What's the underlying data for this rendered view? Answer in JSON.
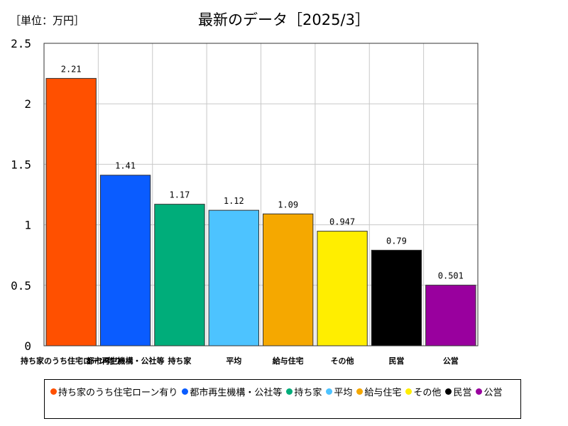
{
  "header": {
    "unit_label": "［単位：万円］",
    "title": "最新のデータ［2025/3］"
  },
  "chart_data": {
    "type": "bar",
    "categories": [
      "持ち家のうち住宅ローン有り",
      "都市再生機構・公社等",
      "持ち家",
      "平均",
      "給与住宅",
      "その他",
      "民営",
      "公営"
    ],
    "values": [
      2.21,
      1.41,
      1.17,
      1.12,
      1.09,
      0.947,
      0.79,
      0.501
    ],
    "value_labels": [
      "2.21",
      "1.41",
      "1.17",
      "1.12",
      "1.09",
      "0.947",
      "0.79",
      "0.501"
    ],
    "colors": [
      "#ff5000",
      "#0a5cff",
      "#00ad7a",
      "#4dc3ff",
      "#f5a800",
      "#ffee00",
      "#000000",
      "#99009e"
    ],
    "ylim": [
      0,
      2.5
    ],
    "yticks": [
      0,
      0.5,
      1,
      1.5,
      2,
      2.5
    ],
    "ytick_labels": [
      "0",
      "0.5",
      "1",
      "1.5",
      "2",
      "2.5"
    ],
    "grid": true,
    "legend_position": "bottom"
  },
  "legend": {
    "items": [
      "持ち家のうち住宅ローン有り",
      "都市再生機構・公社等",
      "持ち家",
      "平均",
      "給与住宅",
      "その他",
      "民営",
      "公営"
    ]
  }
}
